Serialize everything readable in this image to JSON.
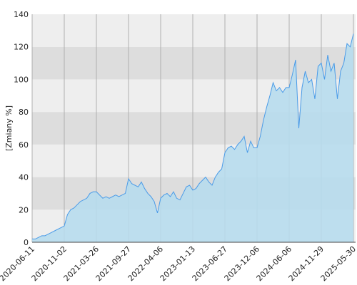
{
  "chart_data": {
    "type": "area",
    "ylabel": "[Zmiany %]",
    "color": "#4a9be8",
    "fill": "#b7dced",
    "ylim": [
      0,
      140
    ],
    "yticks": [
      0,
      20,
      40,
      60,
      80,
      100,
      120,
      140
    ],
    "grid": true,
    "categories": [
      "2020-06-11",
      null,
      null,
      null,
      null,
      null,
      null,
      null,
      null,
      null,
      "2020-11-02",
      null,
      null,
      null,
      null,
      null,
      null,
      null,
      null,
      null,
      "2021-03-26",
      null,
      null,
      null,
      null,
      null,
      null,
      null,
      null,
      null,
      "2021-09-27",
      null,
      null,
      null,
      null,
      null,
      null,
      null,
      null,
      null,
      "2022-04-06",
      null,
      null,
      null,
      null,
      null,
      null,
      null,
      null,
      null,
      "2023-01-13",
      null,
      null,
      null,
      null,
      null,
      null,
      null,
      null,
      null,
      "2023-06-27",
      null,
      null,
      null,
      null,
      null,
      null,
      null,
      null,
      null,
      "2023-12-06",
      null,
      null,
      null,
      null,
      null,
      null,
      null,
      null,
      null,
      "2024-06-06",
      null,
      null,
      null,
      null,
      null,
      null,
      null,
      null,
      null,
      "2024-11-29",
      null,
      null,
      null,
      null,
      null,
      null,
      null,
      null,
      null,
      "2025-05-30"
    ],
    "values": [
      2,
      2,
      3,
      4,
      4,
      5,
      6,
      7,
      8,
      9,
      10,
      17,
      20,
      21,
      23,
      25,
      26,
      27,
      30,
      31,
      31,
      29,
      27,
      28,
      27,
      28,
      29,
      28,
      29,
      30,
      39,
      36,
      35,
      34,
      37,
      33,
      30,
      28,
      25,
      18,
      27,
      29,
      30,
      28,
      31,
      27,
      26,
      30,
      34,
      35,
      32,
      33,
      36,
      38,
      40,
      37,
      35,
      40,
      43,
      45,
      55,
      58,
      59,
      57,
      60,
      62,
      65,
      55,
      62,
      58,
      58,
      65,
      75,
      83,
      90,
      98,
      93,
      95,
      92,
      95,
      95,
      103,
      112,
      70,
      95,
      105,
      98,
      100,
      88,
      108,
      110,
      100,
      115,
      105,
      110,
      88,
      105,
      110,
      122,
      120,
      128
    ]
  }
}
